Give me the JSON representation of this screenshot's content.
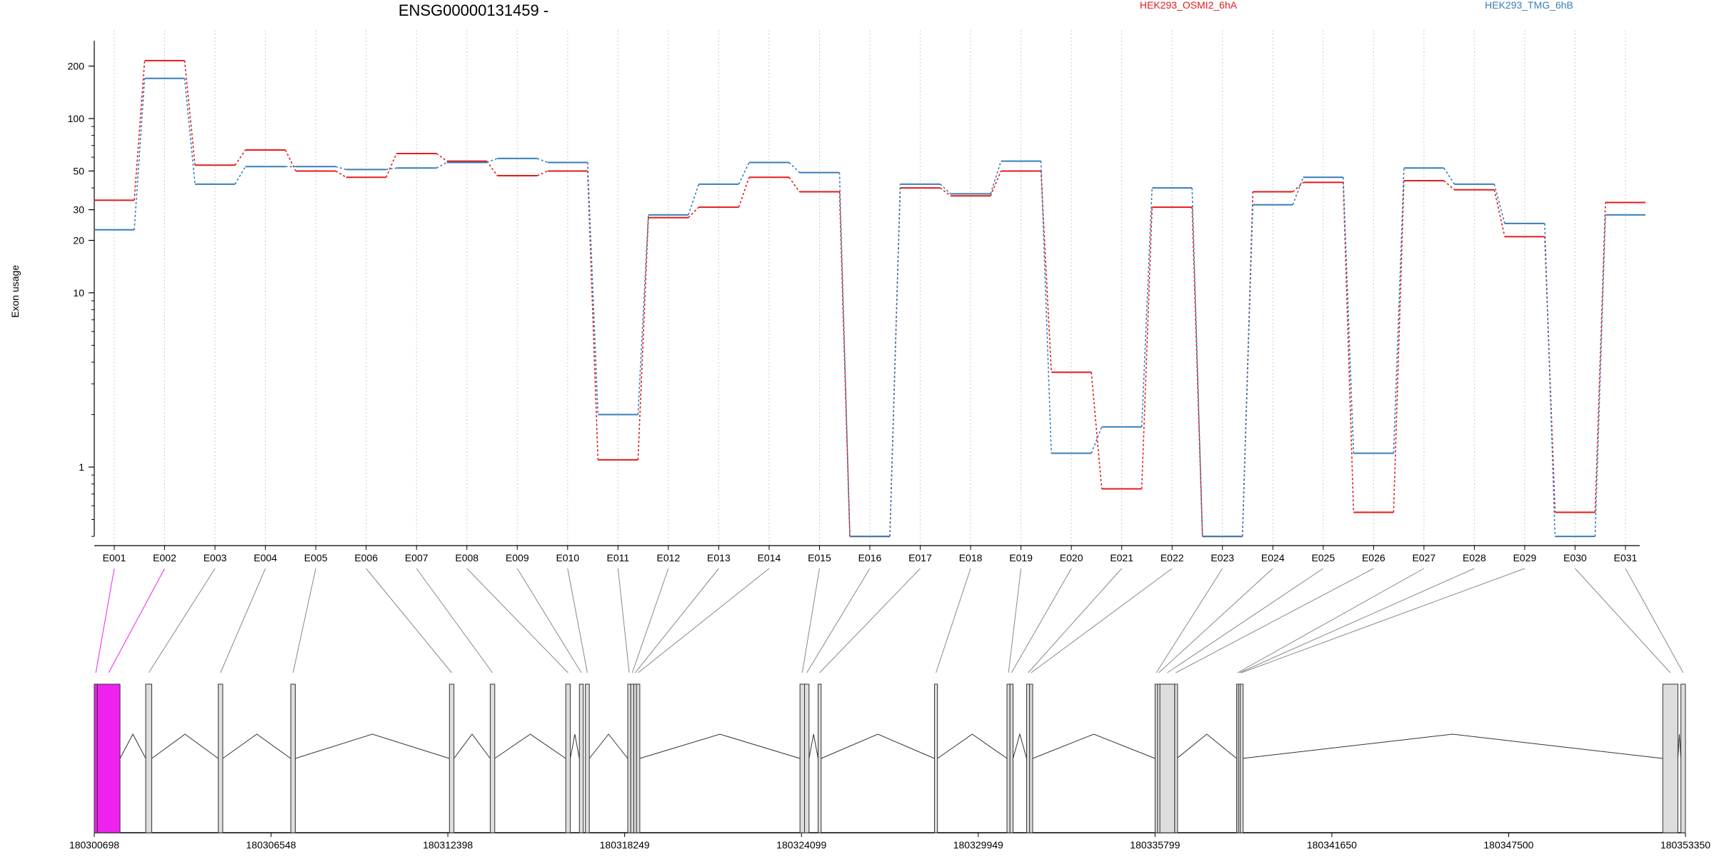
{
  "chart_data": {
    "type": "line",
    "title": "ENSG00000131459 -",
    "ylabel": "Exon usage",
    "y_scale": "log",
    "ylim": [
      0.4,
      280
    ],
    "y_ticks": [
      1,
      10,
      20,
      30,
      50,
      100,
      200
    ],
    "y_tick_labels": [
      "1",
      "10",
      "20",
      "30",
      "50",
      "100",
      "200"
    ],
    "grid": "vertical dotted lines at exon centers",
    "categories": [
      "E001",
      "E002",
      "E003",
      "E004",
      "E005",
      "E006",
      "E007",
      "E008",
      "E009",
      "E010",
      "E011",
      "E012",
      "E013",
      "E014",
      "E015",
      "E016",
      "E017",
      "E018",
      "E019",
      "E020",
      "E021",
      "E022",
      "E023",
      "E024",
      "E025",
      "E026",
      "E027",
      "E028",
      "E029",
      "E030",
      "E031"
    ],
    "series": [
      {
        "name": "HEK293_OSMI2_6hA",
        "color": "#e41a1c",
        "values": [
          34,
          215,
          54,
          66,
          50,
          46,
          63,
          57,
          47,
          50,
          1.1,
          27,
          31,
          46,
          38,
          0.4,
          40,
          36,
          50,
          3.5,
          0.75,
          31,
          0.4,
          38,
          43,
          0.55,
          44,
          39,
          21,
          0.55,
          33
        ]
      },
      {
        "name": "HEK293_TMG_6hB",
        "color": "#377eb8",
        "values": [
          23,
          170,
          42,
          53,
          53,
          51,
          52,
          56,
          59,
          56,
          2.0,
          28,
          42,
          56,
          49,
          0.4,
          42,
          37,
          57,
          1.2,
          1.7,
          40,
          0.4,
          32,
          46,
          1.2,
          52,
          42,
          25,
          0.4,
          28
        ]
      }
    ],
    "gene_model": {
      "coordinate_labels": [
        "180300698",
        "180306548",
        "180312398",
        "180318249",
        "180324099",
        "180329949",
        "180335799",
        "180341650",
        "180347500",
        "180353350"
      ],
      "coord_start": 180300698,
      "coord_end": 180353350,
      "highlight_color": "#ee22ee",
      "exons": [
        {
          "id": "E001",
          "start": 180300698,
          "end": 180300800,
          "highlight": true
        },
        {
          "id": "E002",
          "start": 180300800,
          "end": 180301550,
          "highlight": true
        },
        {
          "id": "E003",
          "start": 180302400,
          "end": 180302600,
          "highlight": false
        },
        {
          "id": "E004",
          "start": 180304800,
          "end": 180304950,
          "highlight": false
        },
        {
          "id": "E005",
          "start": 180307200,
          "end": 180307350,
          "highlight": false
        },
        {
          "id": "E006",
          "start": 180312450,
          "end": 180312600,
          "highlight": false
        },
        {
          "id": "E007",
          "start": 180313800,
          "end": 180313950,
          "highlight": false
        },
        {
          "id": "E008",
          "start": 180316300,
          "end": 180316450,
          "highlight": false
        },
        {
          "id": "E009",
          "start": 180316750,
          "end": 180316880,
          "highlight": false
        },
        {
          "id": "E010",
          "start": 180316950,
          "end": 180317080,
          "highlight": false
        },
        {
          "id": "E011",
          "start": 180318350,
          "end": 180318450,
          "highlight": false
        },
        {
          "id": "E012",
          "start": 180318450,
          "end": 180318550,
          "highlight": false
        },
        {
          "id": "E013",
          "start": 180318550,
          "end": 180318640,
          "highlight": false
        },
        {
          "id": "E014",
          "start": 180318640,
          "end": 180318750,
          "highlight": false
        },
        {
          "id": "E015",
          "start": 180324050,
          "end": 180324200,
          "highlight": false
        },
        {
          "id": "E016",
          "start": 180324200,
          "end": 180324350,
          "highlight": false
        },
        {
          "id": "E017",
          "start": 180324650,
          "end": 180324750,
          "highlight": false
        },
        {
          "id": "E018",
          "start": 180328500,
          "end": 180328600,
          "highlight": false
        },
        {
          "id": "E019",
          "start": 180330900,
          "end": 180331000,
          "highlight": false
        },
        {
          "id": "E020",
          "start": 180331000,
          "end": 180331100,
          "highlight": false
        },
        {
          "id": "E021",
          "start": 180331550,
          "end": 180331650,
          "highlight": false
        },
        {
          "id": "E022",
          "start": 180331650,
          "end": 180331750,
          "highlight": false
        },
        {
          "id": "E023",
          "start": 180335800,
          "end": 180335880,
          "highlight": false
        },
        {
          "id": "E024",
          "start": 180335880,
          "end": 180335960,
          "highlight": false
        },
        {
          "id": "E025",
          "start": 180335960,
          "end": 180336450,
          "highlight": false
        },
        {
          "id": "E026",
          "start": 180336450,
          "end": 180336520,
          "highlight": false
        },
        {
          "id": "E027",
          "start": 180338500,
          "end": 180338560,
          "highlight": false
        },
        {
          "id": "E028",
          "start": 180338560,
          "end": 180338620,
          "highlight": false
        },
        {
          "id": "E029",
          "start": 180338620,
          "end": 180338680,
          "highlight": false
        },
        {
          "id": "E030",
          "start": 180352600,
          "end": 180353100,
          "highlight": false
        },
        {
          "id": "E031",
          "start": 180353200,
          "end": 180353350,
          "highlight": false
        }
      ]
    }
  }
}
